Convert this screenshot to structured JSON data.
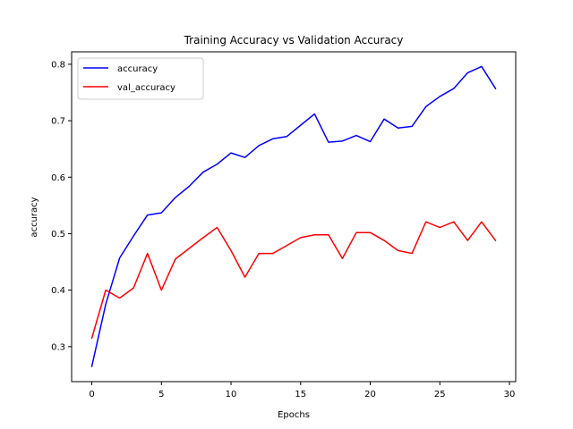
{
  "chart_data": {
    "type": "line",
    "title": "Training Accuracy vs Validation Accuracy",
    "xlabel": "Epochs",
    "ylabel": "accuracy",
    "xlim": [
      -1.45,
      30.45
    ],
    "ylim": [
      0.238,
      0.822
    ],
    "xticks": [
      0,
      5,
      10,
      15,
      20,
      25,
      30
    ],
    "yticks": [
      0.3,
      0.4,
      0.5,
      0.6,
      0.7,
      0.8
    ],
    "grid": false,
    "legend": "top-left",
    "x": [
      0,
      1,
      2,
      3,
      4,
      5,
      6,
      7,
      8,
      9,
      10,
      11,
      12,
      13,
      14,
      15,
      16,
      17,
      18,
      19,
      20,
      21,
      22,
      23,
      24,
      25,
      26,
      27,
      28,
      29
    ],
    "series": [
      {
        "name": "accuracy",
        "color": "#0000ff",
        "values": [
          0.265,
          0.375,
          0.457,
          0.496,
          0.533,
          0.537,
          0.564,
          0.584,
          0.609,
          0.623,
          0.643,
          0.635,
          0.656,
          0.668,
          0.672,
          0.692,
          0.712,
          0.662,
          0.664,
          0.674,
          0.663,
          0.703,
          0.687,
          0.69,
          0.725,
          0.743,
          0.757,
          0.785,
          0.796,
          0.757
        ]
      },
      {
        "name": "val_accuracy",
        "color": "#ff0000",
        "values": [
          0.315,
          0.4,
          0.386,
          0.404,
          0.465,
          0.4,
          0.455,
          0.474,
          0.493,
          0.511,
          0.47,
          0.423,
          0.465,
          0.465,
          0.479,
          0.493,
          0.498,
          0.498,
          0.456,
          0.502,
          0.502,
          0.488,
          0.47,
          0.465,
          0.521,
          0.511,
          0.521,
          0.488,
          0.521,
          0.488
        ]
      }
    ]
  }
}
